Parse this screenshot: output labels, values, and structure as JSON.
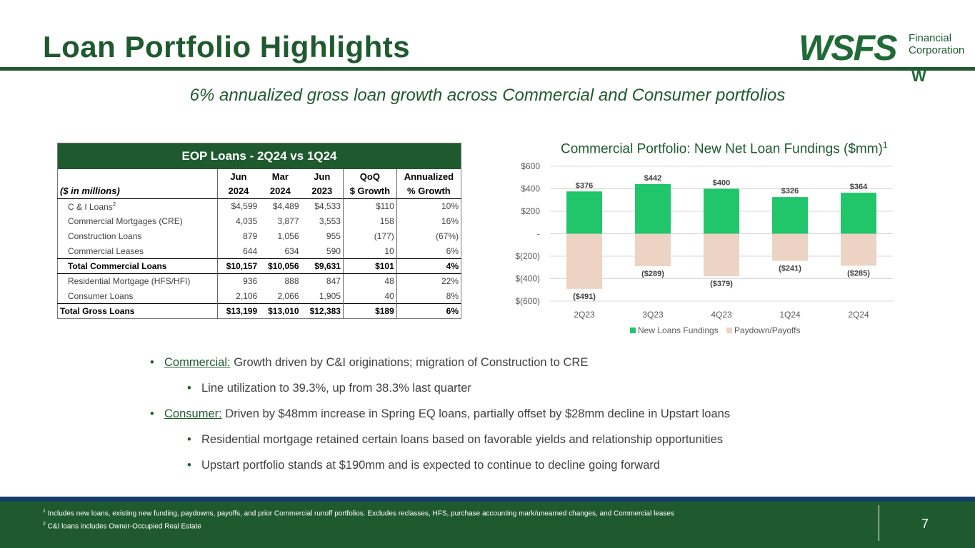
{
  "page": {
    "title": "Loan Portfolio Highlights",
    "subtitle": "6% annualized gross loan growth across Commercial and Consumer portfolios",
    "page_number": "7"
  },
  "logo": {
    "word": "WSFS",
    "line1": "Financial",
    "line2": "Corporation",
    "mark": "W"
  },
  "table": {
    "title": "EOP Loans - 2Q24 vs 1Q24",
    "units": "($ in millions)",
    "headers_top": [
      "Jun",
      "Mar",
      "Jun",
      "QoQ",
      "Annualized"
    ],
    "headers_bottom": [
      "2024",
      "2024",
      "2023",
      "$ Growth",
      "% Growth"
    ],
    "rows": [
      {
        "label": "C & I Loans",
        "sup": "2",
        "v": [
          "$4,599",
          "$4,489",
          "$4,533",
          "$110",
          "10%"
        ]
      },
      {
        "label": "Commercial Mortgages (CRE)",
        "v": [
          "4,035",
          "3,877",
          "3,553",
          "158",
          "16%"
        ]
      },
      {
        "label": "Construction Loans",
        "v": [
          "879",
          "1,056",
          "955",
          "(177)",
          "(67%)"
        ]
      },
      {
        "label": "Commercial Leases",
        "v": [
          "644",
          "634",
          "590",
          "10",
          "6%"
        ]
      },
      {
        "label": "Total Commercial Loans",
        "v": [
          "$10,157",
          "$10,056",
          "$9,631",
          "$101",
          "4%"
        ]
      },
      {
        "label": "Residential Mortgage (HFS/HFI)",
        "v": [
          "936",
          "888",
          "847",
          "48",
          "22%"
        ]
      },
      {
        "label": "Consumer Loans",
        "v": [
          "2,106",
          "2,066",
          "1,905",
          "40",
          "8%"
        ]
      },
      {
        "label": "Total Gross Loans",
        "v": [
          "$13,199",
          "$13,010",
          "$12,383",
          "$189",
          "6%"
        ]
      }
    ]
  },
  "chart_title": "Commercial Portfolio: New Net Loan Fundings ($mm)",
  "chart_title_sup": "1",
  "chart_data": {
    "type": "bar",
    "stacked": true,
    "title": "Commercial Portfolio: New Net Loan Fundings ($mm)",
    "categories": [
      "2Q23",
      "3Q23",
      "4Q23",
      "1Q24",
      "2Q24"
    ],
    "series": [
      {
        "name": "New Loans Fundings",
        "values": [
          376,
          442,
          400,
          326,
          364
        ],
        "labels": [
          "$376",
          "$442",
          "$400",
          "$326",
          "$364"
        ],
        "color": "#21c56a"
      },
      {
        "name": "Paydown/Payoffs",
        "values": [
          -491,
          -289,
          -379,
          -241,
          -285
        ],
        "labels": [
          "($491)",
          "($289)",
          "($379)",
          "($241)",
          "($285)"
        ],
        "color": "#ecd3c4"
      }
    ],
    "ylim": [
      -600,
      600
    ],
    "yticks": [
      600,
      400,
      200,
      0,
      -200,
      -400,
      -600
    ],
    "ytick_labels": [
      "$600",
      "$400",
      "$200",
      "-",
      "$(200)",
      "$(400)",
      "$(600)"
    ],
    "grid": true,
    "legend": "bottom"
  },
  "bullets": [
    {
      "level": 1,
      "head": "Commercial:",
      "text": " Growth driven by C&I originations; migration of Construction to CRE"
    },
    {
      "level": 2,
      "text": "Line utilization to 39.3%, up from 38.3% last quarter"
    },
    {
      "level": 1,
      "head": "Consumer:",
      "text": " Driven by $48mm increase in Spring EQ loans, partially offset by $28mm decline in Upstart loans"
    },
    {
      "level": 2,
      "text": "Residential mortgage retained certain loans based on favorable yields and relationship opportunities"
    },
    {
      "level": 2,
      "text": "Upstart portfolio stands at $190mm and is expected to continue to decline going forward"
    }
  ],
  "bullet_glyph": "•",
  "footnotes": [
    {
      "num": "1",
      "text": " Includes new loans, existing new funding, paydowns, payoffs, and prior Commercial runoff portfolios. Excludes reclasses, HFS, purchase accounting mark/unearned changes, and Commercial leases"
    },
    {
      "num": "2",
      "text": " C&I loans includes Owner-Occupied Real Estate"
    }
  ]
}
